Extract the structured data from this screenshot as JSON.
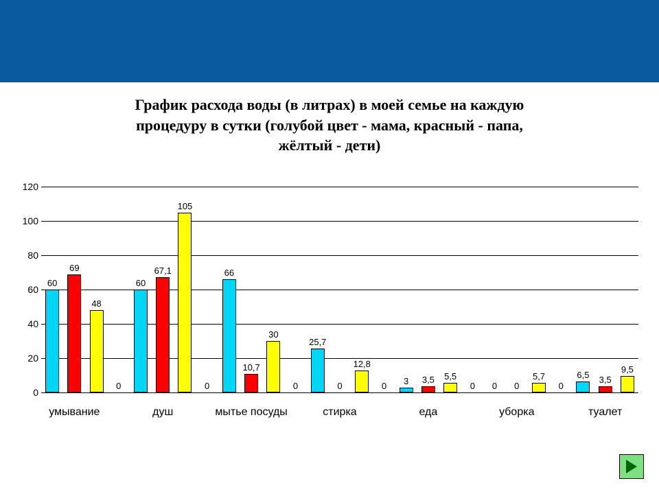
{
  "header": {
    "band_color": "#0a5aa0"
  },
  "title": {
    "line1": "График расхода воды (в литрах) в моей семье на каждую",
    "line2": "процедуру в сутки (голубой цвет - мама, красный - папа,",
    "line3": "жёлтый - дети)",
    "fontsize": 22,
    "color": "#000000"
  },
  "chart": {
    "type": "bar",
    "background_color": "#ffffff",
    "grid_color": "#000000",
    "ymin": 0,
    "ymax": 120,
    "ytick_step": 20,
    "tick_fontsize": 14,
    "bar_group_width": 0.62,
    "bar_label_fontsize": 13,
    "category_label_fontsize": 16,
    "series_colors": [
      "#00d7f7",
      "#ff0000",
      "#ffff00"
    ],
    "bar_border_color": "#000000",
    "categories": [
      "умывание",
      "душ",
      "мытье посуды",
      "стирка",
      "еда",
      "уборка",
      "туалет"
    ],
    "groups": [
      {
        "label": "умывание",
        "bars": [
          {
            "value": 60,
            "label": "60",
            "series": 0
          },
          {
            "value": 69,
            "label": "69",
            "series": 1
          },
          {
            "value": 48,
            "label": "48",
            "series": 2
          },
          {
            "value": 0,
            "label": "0",
            "series": null
          }
        ]
      },
      {
        "label": "душ",
        "bars": [
          {
            "value": 60,
            "label": "60",
            "series": 0
          },
          {
            "value": 67.1,
            "label": "67,1",
            "series": 1
          },
          {
            "value": 105,
            "label": "105",
            "series": 2
          },
          {
            "value": 0,
            "label": "0",
            "series": null
          }
        ]
      },
      {
        "label": "мытье посуды",
        "bars": [
          {
            "value": 66,
            "label": "66",
            "series": 0
          },
          {
            "value": 10.7,
            "label": "10,7",
            "series": 1
          },
          {
            "value": 30,
            "label": "30",
            "series": 2
          },
          {
            "value": 0,
            "label": "0",
            "series": null
          }
        ]
      },
      {
        "label": "стирка",
        "bars": [
          {
            "value": 25.7,
            "label": "25,7",
            "series": 0
          },
          {
            "value": 0,
            "label": "0",
            "series": null
          },
          {
            "value": 12.8,
            "label": "12,8",
            "series": 2
          },
          {
            "value": 0,
            "label": "0",
            "series": null
          }
        ]
      },
      {
        "label": "еда",
        "bars": [
          {
            "value": 3,
            "label": "3",
            "series": 0
          },
          {
            "value": 3.5,
            "label": "3,5",
            "series": 1
          },
          {
            "value": 5.5,
            "label": "5,5",
            "series": 2
          },
          {
            "value": 0,
            "label": "0",
            "series": null
          }
        ]
      },
      {
        "label": "уборка",
        "bars": [
          {
            "value": 0,
            "label": "0",
            "series": null
          },
          {
            "value": 0,
            "label": "0",
            "series": null
          },
          {
            "value": 5.7,
            "label": "5,7",
            "series": 2
          },
          {
            "value": 0,
            "label": "0",
            "series": null
          }
        ]
      },
      {
        "label": "туалет",
        "bars": [
          {
            "value": 6.5,
            "label": "6,5",
            "series": 0
          },
          {
            "value": 3.5,
            "label": "3,5",
            "series": 1
          },
          {
            "value": 9.5,
            "label": "9,5",
            "series": 2
          }
        ]
      }
    ]
  },
  "nav": {
    "next_button_bg": "#7fe07f",
    "next_arrow_color": "#006400"
  }
}
